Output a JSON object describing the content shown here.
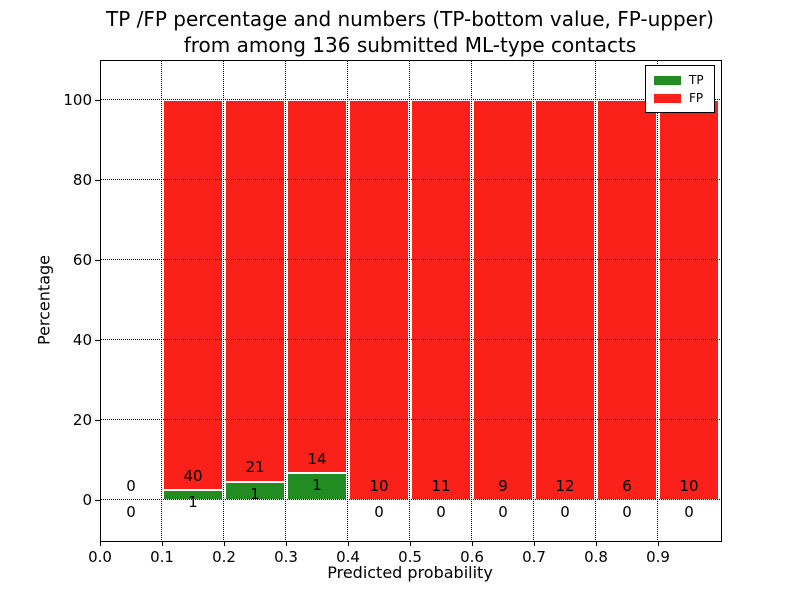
{
  "chart_data": {
    "type": "bar",
    "stacked_percentage": true,
    "title": "TP /FP percentage and numbers (TP-bottom value, FP-upper)\nfrom among 136 submitted ML-type contacts",
    "xlabel": "Predicted probability",
    "ylabel": "Percentage",
    "xlim": [
      0.0,
      1.0
    ],
    "ylim": [
      -10,
      110
    ],
    "grid": true,
    "x_ticks": [
      {
        "value": 0.0,
        "label": "0.0"
      },
      {
        "value": 0.1,
        "label": "0.1"
      },
      {
        "value": 0.2,
        "label": "0.2"
      },
      {
        "value": 0.3,
        "label": "0.3"
      },
      {
        "value": 0.4,
        "label": "0.4"
      },
      {
        "value": 0.5,
        "label": "0.5"
      },
      {
        "value": 0.6,
        "label": "0.6"
      },
      {
        "value": 0.7,
        "label": "0.7"
      },
      {
        "value": 0.8,
        "label": "0.8"
      },
      {
        "value": 0.9,
        "label": "0.9"
      }
    ],
    "y_ticks": [
      {
        "value": 0,
        "label": "0"
      },
      {
        "value": 20,
        "label": "20"
      },
      {
        "value": 40,
        "label": "40"
      },
      {
        "value": 60,
        "label": "60"
      },
      {
        "value": 80,
        "label": "80"
      },
      {
        "value": 100,
        "label": "100"
      }
    ],
    "legend": {
      "position": "upper right",
      "entries": [
        {
          "label": "TP",
          "color": "#228b22"
        },
        {
          "label": "FP",
          "color": "#fa211a"
        }
      ]
    },
    "bins": [
      {
        "range": [
          0.0,
          0.1
        ],
        "tp": 0,
        "fp": 0,
        "bar": false
      },
      {
        "range": [
          0.1,
          0.2
        ],
        "tp": 1,
        "fp": 40,
        "bar": true
      },
      {
        "range": [
          0.2,
          0.3
        ],
        "tp": 1,
        "fp": 21,
        "bar": true
      },
      {
        "range": [
          0.3,
          0.4
        ],
        "tp": 1,
        "fp": 14,
        "bar": true
      },
      {
        "range": [
          0.4,
          0.5
        ],
        "tp": 0,
        "fp": 10,
        "bar": true
      },
      {
        "range": [
          0.5,
          0.6
        ],
        "tp": 0,
        "fp": 11,
        "bar": true
      },
      {
        "range": [
          0.6,
          0.7
        ],
        "tp": 0,
        "fp": 9,
        "bar": true
      },
      {
        "range": [
          0.7,
          0.8
        ],
        "tp": 0,
        "fp": 12,
        "bar": true
      },
      {
        "range": [
          0.8,
          0.9
        ],
        "tp": 0,
        "fp": 6,
        "bar": true
      },
      {
        "range": [
          0.9,
          1.0
        ],
        "tp": 0,
        "fp": 10,
        "bar": true
      }
    ],
    "colors": {
      "tp": "#228b22",
      "fp": "#fa211a",
      "grid": "#000000",
      "text": "#000000",
      "background": "#ffffff"
    }
  }
}
